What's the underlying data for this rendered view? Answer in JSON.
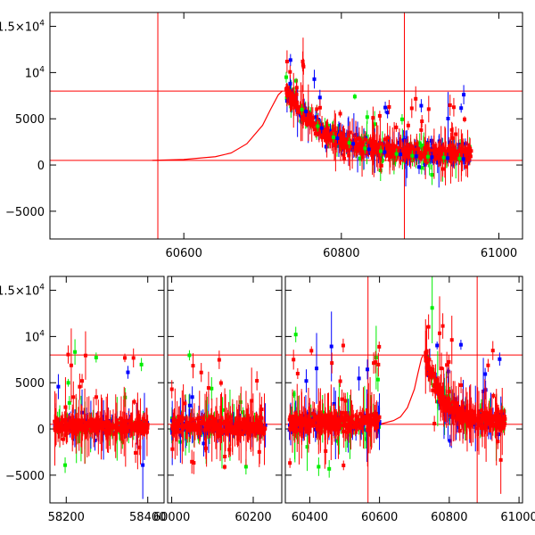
{
  "chart_data": [
    {
      "type": "scatter",
      "title": "",
      "xlabel": "",
      "ylabel": "",
      "xlim": [
        60430,
        61030
      ],
      "ylim": [
        -8000,
        16500
      ],
      "xticks": [
        {
          "value": 60600,
          "label": "60600"
        },
        {
          "value": 60800,
          "label": "60800"
        },
        {
          "value": 61000,
          "label": "61000"
        }
      ],
      "yticks": [
        {
          "value": -5000,
          "label": "−5000"
        },
        {
          "value": 0,
          "label": "0"
        },
        {
          "value": 5000,
          "label": "5000"
        },
        {
          "value": 10000,
          "label": "10",
          "sup": "4"
        },
        {
          "value": 15000,
          "label": "1.5×10",
          "sup": "4"
        }
      ],
      "colors": {
        "red": "#ff0000",
        "green": "#00ee00",
        "blue": "#0000ff",
        "axes": "#000000",
        "model": "#ff0000"
      },
      "series": [
        {
          "color": "#ff0000",
          "x": [
            60730,
            60740,
            60750,
            60760,
            60770,
            60780,
            60790,
            60800,
            60810,
            60820,
            60830,
            60840,
            60850,
            60860,
            60870,
            60880,
            60890,
            60900,
            60910,
            60920,
            60930,
            60940,
            60950,
            60960
          ],
          "y": [
            8200,
            6800,
            5600,
            4600,
            3700,
            3000,
            2500,
            2100,
            1800,
            1500,
            1300,
            1200,
            1100,
            1000,
            900,
            850,
            800,
            750,
            700,
            680,
            650,
            620,
            600,
            580
          ]
        },
        {
          "color": "#00ee00",
          "x": [
            60730,
            60750,
            60770,
            60790,
            60810,
            60830,
            60850,
            60870,
            60890,
            60910,
            60930,
            60950
          ],
          "y": [
            9500,
            6000,
            4200,
            3000,
            2400,
            1800,
            1500,
            1200,
            1000,
            900,
            800,
            700
          ]
        },
        {
          "color": "#0000ff",
          "x": [
            60735,
            60755,
            60775,
            60795,
            60815,
            60835,
            60855,
            60875,
            60895,
            60915,
            60935,
            60955
          ],
          "y": [
            8800,
            5800,
            4000,
            2900,
            2300,
            1700,
            1400,
            1150,
            950,
            850,
            750,
            650
          ]
        }
      ],
      "model_curve": {
        "x": [
          60560,
          60600,
          60640,
          60660,
          60680,
          60700,
          60710,
          60720,
          60725
        ],
        "y": [
          500,
          600,
          900,
          1300,
          2300,
          4300,
          6000,
          7600,
          8000
        ]
      },
      "hlines": [
        8000,
        500
      ],
      "vlines": [
        60567,
        60880
      ]
    },
    {
      "type": "scatter",
      "title": "",
      "xlabel": "",
      "ylabel": "",
      "segments": [
        {
          "xlim": [
            58160,
            58440
          ],
          "xticks": [
            {
              "value": 58200,
              "label": "58200"
            },
            {
              "value": 58400,
              "label": "58400"
            }
          ]
        },
        {
          "xlim": [
            59990,
            60270
          ],
          "xticks": [
            {
              "value": 60000,
              "label": "60000"
            },
            {
              "value": 60200,
              "label": "60200"
            }
          ]
        },
        {
          "xlim": [
            60330,
            61010
          ],
          "xticks": [
            {
              "value": 60400,
              "label": "60400"
            },
            {
              "value": 60600,
              "label": "60600"
            },
            {
              "value": 60800,
              "label": "60800"
            },
            {
              "value": 61000,
              "label": "61000"
            }
          ]
        }
      ],
      "ylim": [
        -8000,
        16500
      ],
      "yticks": [
        {
          "value": -5000,
          "label": "−5000"
        },
        {
          "value": 0,
          "label": "0"
        },
        {
          "value": 5000,
          "label": "5000"
        },
        {
          "value": 10000,
          "label": "10",
          "sup": "4"
        },
        {
          "value": 15000,
          "label": "1.5×10",
          "sup": "4"
        }
      ],
      "groups": [
        {
          "segment": 0,
          "x": [
            58170,
            58400
          ],
          "center": 300,
          "spread": 1200
        },
        {
          "segment": 1,
          "x": [
            60000,
            60230
          ],
          "center": 300,
          "spread": 1400
        },
        {
          "segment": 2,
          "x": [
            60340,
            60600
          ],
          "center": 700,
          "spread": 1700
        },
        {
          "segment": 2,
          "x": [
            60730,
            60960
          ],
          "center": 1500,
          "spread": 1600,
          "decay_from": 8500
        }
      ],
      "model_curve": {
        "x": [
          60600,
          60640,
          60660,
          60680,
          60700,
          60710,
          60720,
          60725
        ],
        "y": [
          500,
          900,
          1300,
          2300,
          4300,
          6000,
          7600,
          8000
        ]
      },
      "hlines": [
        8000,
        500
      ],
      "vlines": [
        60567,
        60880
      ]
    }
  ]
}
